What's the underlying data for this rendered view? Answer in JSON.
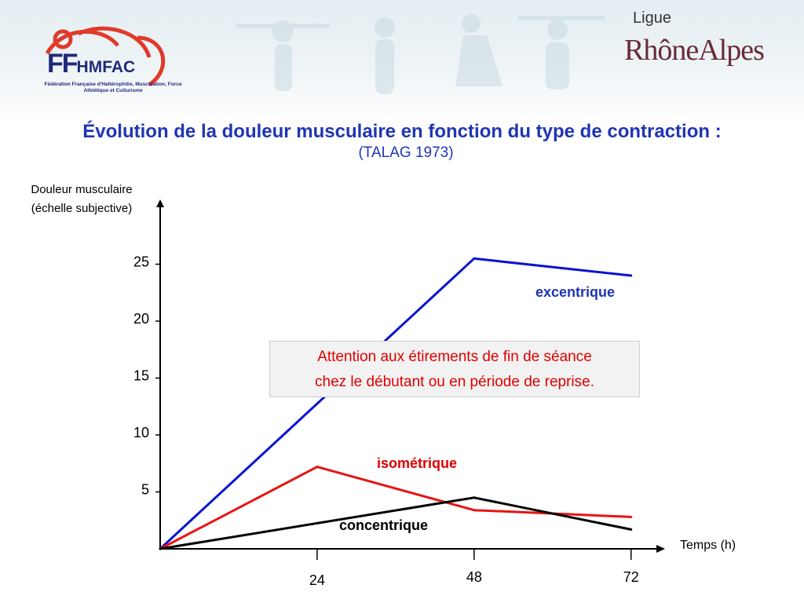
{
  "header": {
    "logo_text_big": "FF",
    "logo_text_small": "HMFAC",
    "logo_caption": "Fédération Française d'Haltérophilie, Musculation, Force Athlétique et Culturisme",
    "ligue_label": "Ligue",
    "region_label": "RhôneAlpes"
  },
  "slide": {
    "title": "Évolution de la douleur musculaire en fonction du type de contraction :",
    "subtitle": "(TALAG 1973)",
    "callout_line1": "Attention aux étirements de fin de séance",
    "callout_line2": "chez le débutant ou en période de reprise."
  },
  "colors": {
    "title": "#1f35b4",
    "excentrique": "#0a14d0",
    "isometrique": "#e81414",
    "concentrique": "#000000",
    "callout_text": "#e00000"
  },
  "chart_data": {
    "type": "line",
    "title": "",
    "ylabel_line1": "Douleur musculaire",
    "ylabel_line2": "(échelle subjective)",
    "xlabel": "Temps (h)",
    "x_ticks": [
      24,
      48,
      72
    ],
    "y_ticks": [
      5,
      10,
      15,
      20,
      25
    ],
    "xlim": [
      0,
      84
    ],
    "ylim": [
      0,
      30
    ],
    "grid": false,
    "series": [
      {
        "name": "excentrique",
        "color": "#0a14d0",
        "x": [
          0,
          48,
          72
        ],
        "y": [
          0,
          25.5,
          24
        ]
      },
      {
        "name": "isométrique",
        "color": "#e81414",
        "x": [
          0,
          24,
          48,
          72
        ],
        "y": [
          0,
          7.2,
          3.4,
          2.8
        ]
      },
      {
        "name": "concentrique",
        "color": "#000000",
        "x": [
          0,
          48,
          72
        ],
        "y": [
          0,
          4.5,
          1.7
        ]
      }
    ]
  }
}
